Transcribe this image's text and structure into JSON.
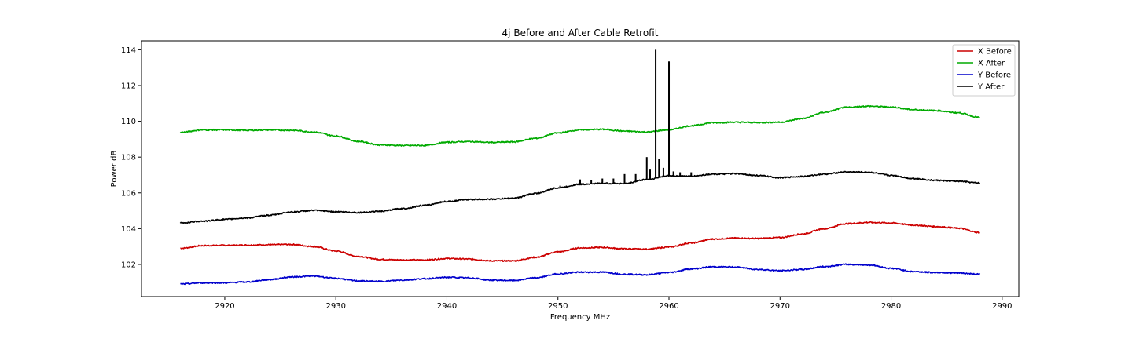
{
  "chart_data": {
    "type": "line",
    "title": "4j Before and After Cable Retrofit",
    "xlabel": "Frequency MHz",
    "ylabel": "Power dB",
    "xlim": [
      2912.5,
      2991.5
    ],
    "ylim": [
      100.2,
      114.5
    ],
    "xticks": [
      2920,
      2930,
      2940,
      2950,
      2960,
      2970,
      2980,
      2990
    ],
    "yticks": [
      102,
      104,
      106,
      108,
      110,
      112,
      114
    ],
    "grid": false,
    "legend_position": "top-right",
    "x": [
      2916,
      2918,
      2920,
      2922,
      2924,
      2926,
      2928,
      2930,
      2932,
      2934,
      2936,
      2938,
      2940,
      2942,
      2944,
      2946,
      2948,
      2950,
      2952,
      2954,
      2956,
      2958,
      2960,
      2962,
      2964,
      2966,
      2968,
      2970,
      2972,
      2974,
      2976,
      2978,
      2980,
      2982,
      2984,
      2986,
      2988
    ],
    "series": [
      {
        "name": "X Before",
        "color": "#cc0000",
        "values": [
          102.9,
          103.05,
          103.07,
          103.08,
          103.1,
          103.12,
          103.0,
          102.75,
          102.45,
          102.28,
          102.25,
          102.25,
          102.33,
          102.3,
          102.2,
          102.2,
          102.4,
          102.7,
          102.92,
          102.95,
          102.87,
          102.85,
          102.97,
          103.2,
          103.42,
          103.47,
          103.45,
          103.5,
          103.7,
          104.0,
          104.28,
          104.35,
          104.32,
          104.2,
          104.12,
          104.03,
          103.78
        ]
      },
      {
        "name": "X After",
        "color": "#00aa00",
        "values": [
          109.38,
          109.52,
          109.52,
          109.5,
          109.52,
          109.5,
          109.4,
          109.18,
          108.88,
          108.68,
          108.65,
          108.65,
          108.83,
          108.87,
          108.82,
          108.85,
          109.05,
          109.35,
          109.52,
          109.55,
          109.45,
          109.4,
          109.53,
          109.75,
          109.92,
          109.95,
          109.93,
          109.95,
          110.15,
          110.5,
          110.78,
          110.85,
          110.8,
          110.65,
          110.6,
          110.48,
          110.22
        ]
      },
      {
        "name": "Y Before",
        "color": "#0000cc",
        "values": [
          100.9,
          100.97,
          100.97,
          101.02,
          101.15,
          101.3,
          101.35,
          101.22,
          101.08,
          101.05,
          101.12,
          101.2,
          101.28,
          101.25,
          101.12,
          101.1,
          101.25,
          101.47,
          101.57,
          101.57,
          101.45,
          101.42,
          101.55,
          101.75,
          101.87,
          101.85,
          101.72,
          101.65,
          101.72,
          101.88,
          102.0,
          101.97,
          101.78,
          101.6,
          101.55,
          101.52,
          101.45
        ]
      },
      {
        "name": "Y After",
        "color": "#000000",
        "values": [
          104.32,
          104.42,
          104.52,
          104.6,
          104.75,
          104.93,
          105.02,
          104.95,
          104.9,
          104.97,
          105.12,
          105.3,
          105.52,
          105.63,
          105.65,
          105.7,
          105.97,
          106.28,
          106.48,
          106.53,
          106.52,
          106.75,
          106.95,
          106.93,
          107.05,
          107.07,
          106.97,
          106.85,
          106.92,
          107.05,
          107.17,
          107.15,
          106.98,
          106.8,
          106.7,
          106.65,
          106.55
        ]
      }
    ],
    "spikes": {
      "series": "Y After",
      "x": [
        2950.2,
        2952,
        2953,
        2954,
        2955,
        2956,
        2957,
        2958,
        2958.3,
        2958.8,
        2959.1,
        2959.5,
        2960,
        2960.4,
        2961,
        2962
      ],
      "values": [
        106.4,
        106.75,
        106.7,
        106.8,
        106.8,
        107.05,
        107.05,
        108.0,
        107.3,
        114.0,
        107.9,
        107.4,
        113.35,
        107.2,
        107.15,
        107.15
      ]
    }
  }
}
